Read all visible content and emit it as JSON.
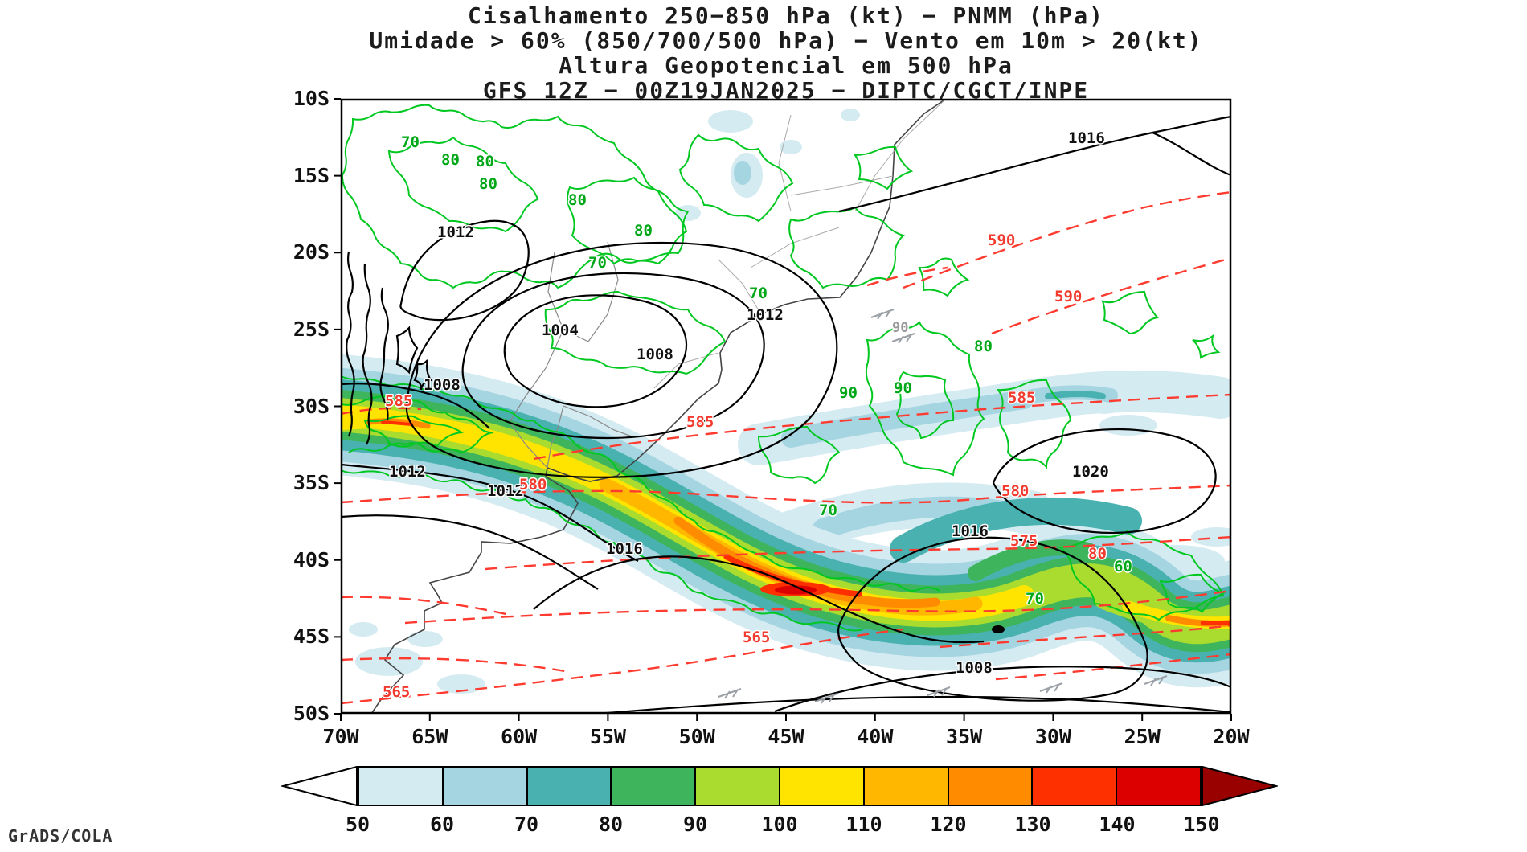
{
  "titles": [
    "Cisalhamento 250−850 hPa (kt) − PNMM (hPa)",
    "Umidade > 60% (850/700/500 hPa) − Vento em 10m > 20(kt)",
    "Altura Geopotencial em 500 hPa",
    "GFS 12Z − 00Z19JAN2025 − DIPTC/CGCT/INPE"
  ],
  "branding": "GrADS/COLA",
  "map": {
    "lat_labels": [
      "10S",
      "15S",
      "20S",
      "25S",
      "30S",
      "35S",
      "40S",
      "45S",
      "50S"
    ],
    "lon_labels": [
      "70W",
      "65W",
      "60W",
      "55W",
      "50W",
      "45W",
      "40W",
      "35W",
      "30W",
      "25W",
      "20W"
    ],
    "contour_labels": {
      "pressure_black": [
        [
          "1016",
          905,
          55
        ],
        [
          "1012",
          120,
          172
        ],
        [
          "1004",
          250,
          294
        ],
        [
          "1008",
          368,
          324
        ],
        [
          "1012",
          505,
          275
        ],
        [
          "1008",
          103,
          362
        ],
        [
          "1012",
          60,
          470
        ],
        [
          "1012",
          182,
          494
        ],
        [
          "1016",
          330,
          566
        ],
        [
          "1016",
          760,
          544
        ],
        [
          "1020",
          910,
          470
        ],
        [
          "1008",
          765,
          714
        ]
      ],
      "geopotential_red": [
        [
          "590",
          805,
          182
        ],
        [
          "590",
          888,
          252
        ],
        [
          "585",
          55,
          382
        ],
        [
          "585",
          430,
          408
        ],
        [
          "585",
          830,
          378
        ],
        [
          "580",
          222,
          486
        ],
        [
          "580",
          822,
          494
        ],
        [
          "575",
          833,
          556
        ],
        [
          "565",
          500,
          676
        ],
        [
          "565",
          52,
          744
        ],
        [
          "80",
          930,
          572
        ]
      ],
      "humidity_green": [
        [
          "70",
          75,
          60
        ],
        [
          "80",
          125,
          82
        ],
        [
          "80",
          168,
          84
        ],
        [
          "80",
          172,
          112
        ],
        [
          "80",
          283,
          132
        ],
        [
          "80",
          365,
          170
        ],
        [
          "70",
          308,
          210
        ],
        [
          "70",
          508,
          248
        ],
        [
          "90",
          620,
          372
        ],
        [
          "90",
          688,
          366
        ],
        [
          "80",
          788,
          314
        ],
        [
          "70",
          595,
          518
        ],
        [
          "60",
          962,
          588
        ],
        [
          "70",
          852,
          628
        ]
      ],
      "wind_gray": [
        [
          "90",
          686,
          290
        ]
      ]
    }
  },
  "colorbar": {
    "tick_labels": [
      "50",
      "60",
      "70",
      "80",
      "90",
      "100",
      "110",
      "120",
      "130",
      "140",
      "150"
    ],
    "segment_colors": [
      "#d4ebf2",
      "#a6d5e2",
      "#49b2b1",
      "#3eb45c",
      "#a9dc2e",
      "#ffe400",
      "#ffb700",
      "#ff8c00",
      "#ff3000",
      "#dd0000"
    ],
    "left_arrow_color": "#ffffff",
    "right_arrow_color": "#990000"
  }
}
